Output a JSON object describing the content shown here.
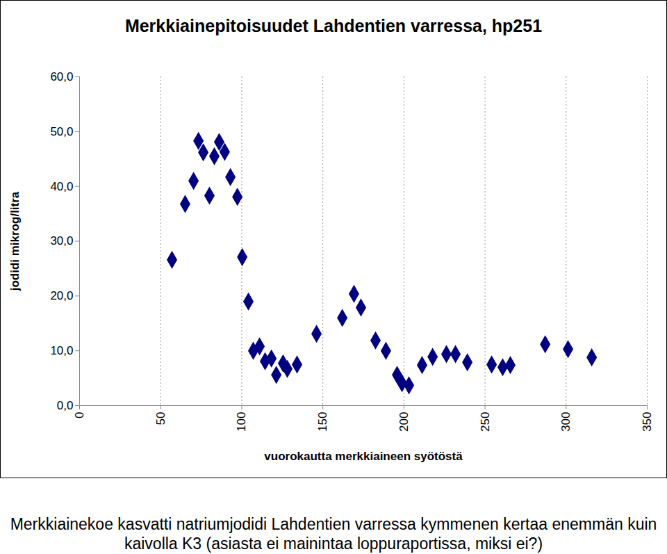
{
  "chart_data": {
    "type": "scatter",
    "title": "Merkkiainepitoisuudet Lahdentien varressa, hp251",
    "x_label": "vuorokautta merkkiaineen syötöstä",
    "y_label": "jodidi mikrog/litra",
    "caption": "Merkkiainekoe kasvatti natriumjodidi Lahdentien varressa kymmenen kertaa enemmän kuin kaivolla K3 (asiasta ei mainintaa loppuraportissa, miksi ei?)",
    "x": [
      57.0,
      65.1,
      70.3,
      73.3,
      76.3,
      80.1,
      83.1,
      86.1,
      89.5,
      93.0,
      97.3,
      100.3,
      104.1,
      107.1,
      111.0,
      114.4,
      118.3,
      121.3,
      125.5,
      128.1,
      134.1,
      146.1,
      162.0,
      169.2,
      173.5,
      182.5,
      188.9,
      195.8,
      198.8,
      203.1,
      211.2,
      217.7,
      226.2,
      231.8,
      239.1,
      254.1,
      260.9,
      265.6,
      287.1,
      301.2,
      315.8
    ],
    "values": [
      26.6,
      36.8,
      41.0,
      48.3,
      46.2,
      38.3,
      45.5,
      48.1,
      46.3,
      41.7,
      38.1,
      27.1,
      19.0,
      10.0,
      10.8,
      8.1,
      8.6,
      5.6,
      7.7,
      6.7,
      7.5,
      13.1,
      16.0,
      20.4,
      17.9,
      11.9,
      10.0,
      5.6,
      4.1,
      3.7,
      7.4,
      8.9,
      9.4,
      9.4,
      7.9,
      7.5,
      7.0,
      7.4,
      11.2,
      10.3,
      8.8
    ],
    "color": "#000080",
    "marker": "diamond",
    "xlim": [
      0,
      350
    ],
    "xticks": [
      0,
      50,
      100,
      150,
      200,
      250,
      300,
      350
    ],
    "ylim": [
      0,
      60
    ],
    "yticks": [
      {
        "value": 0,
        "label": "0,0"
      },
      {
        "value": 10,
        "label": "10,0"
      },
      {
        "value": 20,
        "label": "20,0"
      },
      {
        "value": 30,
        "label": "30,0"
      },
      {
        "value": 40,
        "label": "40,0"
      },
      {
        "value": 50,
        "label": "50,0"
      },
      {
        "value": 60,
        "label": "60,0"
      }
    ],
    "grid": true
  }
}
